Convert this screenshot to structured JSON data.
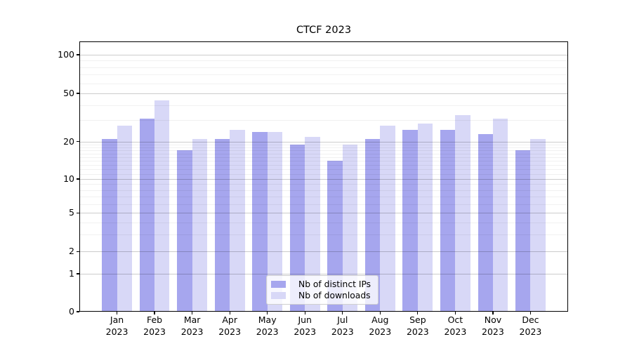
{
  "chart_data": {
    "type": "bar",
    "title": "CTCF 2023",
    "xlabel": "",
    "ylabel": "",
    "months": [
      "Jan",
      "Feb",
      "Mar",
      "Apr",
      "May",
      "Jun",
      "Jul",
      "Aug",
      "Sep",
      "Oct",
      "Nov",
      "Dec"
    ],
    "year": "2023",
    "categories": [
      "Jan 2023",
      "Feb 2023",
      "Mar 2023",
      "Apr 2023",
      "May 2023",
      "Jun 2023",
      "Jul 2023",
      "Aug 2023",
      "Sep 2023",
      "Oct 2023",
      "Nov 2023",
      "Dec 2023"
    ],
    "series": [
      {
        "name": "Nb of distinct IPs",
        "color": "#a6a6ee",
        "values": [
          21,
          31,
          17,
          21,
          24,
          19,
          14,
          21,
          25,
          25,
          23,
          17
        ]
      },
      {
        "name": "Nb of downloads",
        "color": "#d8d8f7",
        "values": [
          27,
          44,
          21,
          25,
          24,
          22,
          19,
          27,
          28,
          33,
          31,
          21
        ]
      }
    ],
    "y_ticks": [
      0,
      1,
      2,
      5,
      10,
      20,
      50,
      100
    ],
    "yscale": "quasi-log (0,1,2,5,10,20,50,100)",
    "ylim_labels": [
      0,
      100
    ],
    "grid": true,
    "legend_position": "lower center"
  }
}
